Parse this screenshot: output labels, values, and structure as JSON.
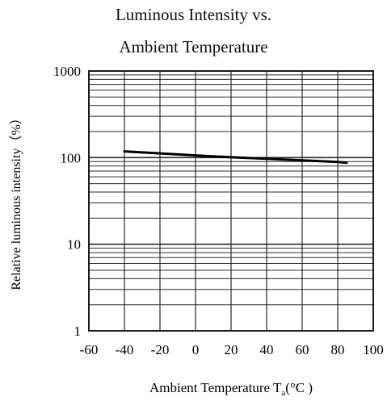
{
  "chart_data": {
    "type": "line",
    "title": "Luminous Intensity vs.",
    "subtitle": "Ambient Temperature",
    "xlabel": "Ambient Temperature T",
    "xlabel_sub": "a",
    "xlabel_unit": "(°C )",
    "ylabel": "Relative luminous intensity（%）",
    "xlim": [
      -60,
      100
    ],
    "ylim": [
      1,
      1000
    ],
    "yscale": "log",
    "grid": true,
    "x_ticks": [
      "-60",
      "-40",
      "-20",
      "0",
      "20",
      "40",
      "60",
      "80",
      "100"
    ],
    "y_ticks": [
      "1",
      "10",
      "100",
      "1000"
    ],
    "series": [
      {
        "x": [
          -40,
          -20,
          0,
          20,
          40,
          60,
          80,
          85
        ],
        "y": [
          118,
          112,
          106,
          101,
          97,
          93,
          89,
          87
        ]
      }
    ]
  },
  "colors": {
    "grid": "#2a2a2a",
    "line": "#000000"
  }
}
